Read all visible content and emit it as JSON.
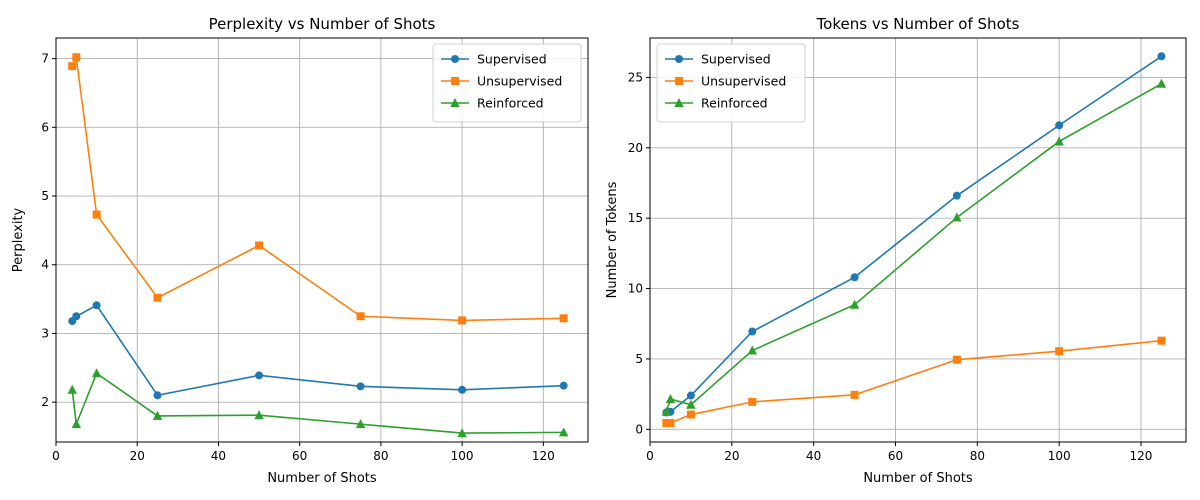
{
  "colors": {
    "Supervised": "#1f77b4",
    "Unsupervised": "#ff7f0e",
    "Reinforced": "#2ca02c"
  },
  "chart_data": [
    {
      "type": "line",
      "title": "Perplexity vs Number of Shots",
      "xlabel": "Number of Shots",
      "ylabel": "Perplexity",
      "grid": true,
      "legend_position": "top-right",
      "xlim": [
        0,
        131
      ],
      "ylim": [
        1.42,
        7.3
      ],
      "xticks": [
        0,
        20,
        40,
        60,
        80,
        100,
        120
      ],
      "yticks": [
        2,
        3,
        4,
        5,
        6,
        7
      ],
      "x": [
        4,
        5,
        10,
        25,
        50,
        75,
        100,
        125
      ],
      "series": [
        {
          "name": "Supervised",
          "marker": "circle",
          "values": [
            3.18,
            3.25,
            3.41,
            2.1,
            2.39,
            2.23,
            2.18,
            2.24
          ]
        },
        {
          "name": "Unsupervised",
          "marker": "square",
          "values": [
            6.89,
            7.02,
            4.73,
            3.52,
            4.28,
            3.25,
            3.19,
            3.22
          ]
        },
        {
          "name": "Reinforced",
          "marker": "triangle",
          "values": [
            2.18,
            1.68,
            2.42,
            1.8,
            1.81,
            1.68,
            1.55,
            1.56
          ]
        }
      ]
    },
    {
      "type": "line",
      "title": "Tokens vs Number of Shots",
      "xlabel": "Number of Shots",
      "ylabel": "Number of Tokens",
      "grid": true,
      "legend_position": "top-left",
      "xlim": [
        0,
        131
      ],
      "ylim": [
        -0.9,
        27.8
      ],
      "xticks": [
        0,
        20,
        40,
        60,
        80,
        100,
        120
      ],
      "yticks": [
        0,
        5,
        10,
        15,
        20,
        25
      ],
      "x": [
        4,
        5,
        10,
        25,
        50,
        75,
        100,
        125
      ],
      "series": [
        {
          "name": "Supervised",
          "marker": "circle",
          "values": [
            1.2,
            1.25,
            2.4,
            6.95,
            10.8,
            16.6,
            21.6,
            26.5
          ]
        },
        {
          "name": "Unsupervised",
          "marker": "square",
          "values": [
            0.45,
            0.45,
            1.05,
            1.95,
            2.45,
            4.95,
            5.55,
            6.3
          ]
        },
        {
          "name": "Reinforced",
          "marker": "triangle",
          "values": [
            1.25,
            2.15,
            1.75,
            5.6,
            8.85,
            15.05,
            20.45,
            24.55
          ]
        }
      ]
    }
  ]
}
